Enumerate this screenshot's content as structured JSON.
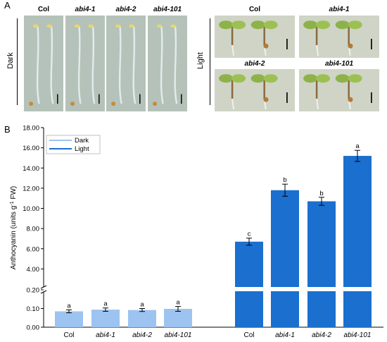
{
  "panel_a": {
    "letter": "A",
    "dark": {
      "label": "Dark",
      "photos": [
        {
          "label": "Col",
          "italic": false
        },
        {
          "label": "abi4-1",
          "italic": true
        },
        {
          "label": "abi4-2",
          "italic": true
        },
        {
          "label": "abi4-101",
          "italic": true
        }
      ]
    },
    "light": {
      "label": "Light",
      "photos": [
        {
          "label": "Col",
          "italic": false
        },
        {
          "label": "abi4-1",
          "italic": true
        },
        {
          "label": "abi4-2",
          "italic": true
        },
        {
          "label": "abi4-101",
          "italic": true
        }
      ]
    }
  },
  "panel_b": {
    "letter": "B"
  },
  "colors": {
    "dark_bar": "#9dc3f0",
    "light_bar": "#1a6fcf",
    "photo_dark_bg": "#b9c6bd",
    "photo_light_bg": "#cfd4c6"
  },
  "chart_data": {
    "type": "bar",
    "ylabel": "Anthocyanin (units g-1 FW)",
    "ylabel_main": "Anthocyanin (units g",
    "ylabel_sup": "-1",
    "ylabel_tail": " FW)",
    "broken_axis": true,
    "y_lower": {
      "min": 0.0,
      "max": 0.2,
      "ticks": [
        "0.00",
        "0.10",
        "0.20"
      ]
    },
    "y_upper": {
      "min": 2.0,
      "max": 18.0,
      "ticks": [
        "4.00",
        "6.00",
        "8.00",
        "10.00",
        "12.00",
        "14.00",
        "16.00",
        "18.00"
      ]
    },
    "legend": {
      "position": "top-left",
      "entries": [
        "Dark",
        "Light"
      ]
    },
    "series": [
      {
        "name": "Dark",
        "categories": [
          "Col",
          "abi4-1",
          "abi4-2",
          "abi4-101"
        ],
        "italic": [
          false,
          true,
          true,
          true
        ],
        "values": [
          0.085,
          0.094,
          0.092,
          0.098
        ],
        "errors": [
          0.008,
          0.009,
          0.008,
          0.013
        ],
        "letters": [
          "a",
          "a",
          "a",
          "a"
        ]
      },
      {
        "name": "Light",
        "categories": [
          "Col",
          "abi4-1",
          "abi4-2",
          "abi4-101"
        ],
        "italic": [
          false,
          true,
          true,
          true
        ],
        "values": [
          6.7,
          11.8,
          10.7,
          15.2
        ],
        "errors": [
          0.35,
          0.6,
          0.4,
          0.55
        ],
        "letters": [
          "c",
          "b",
          "b",
          "a"
        ]
      }
    ]
  }
}
